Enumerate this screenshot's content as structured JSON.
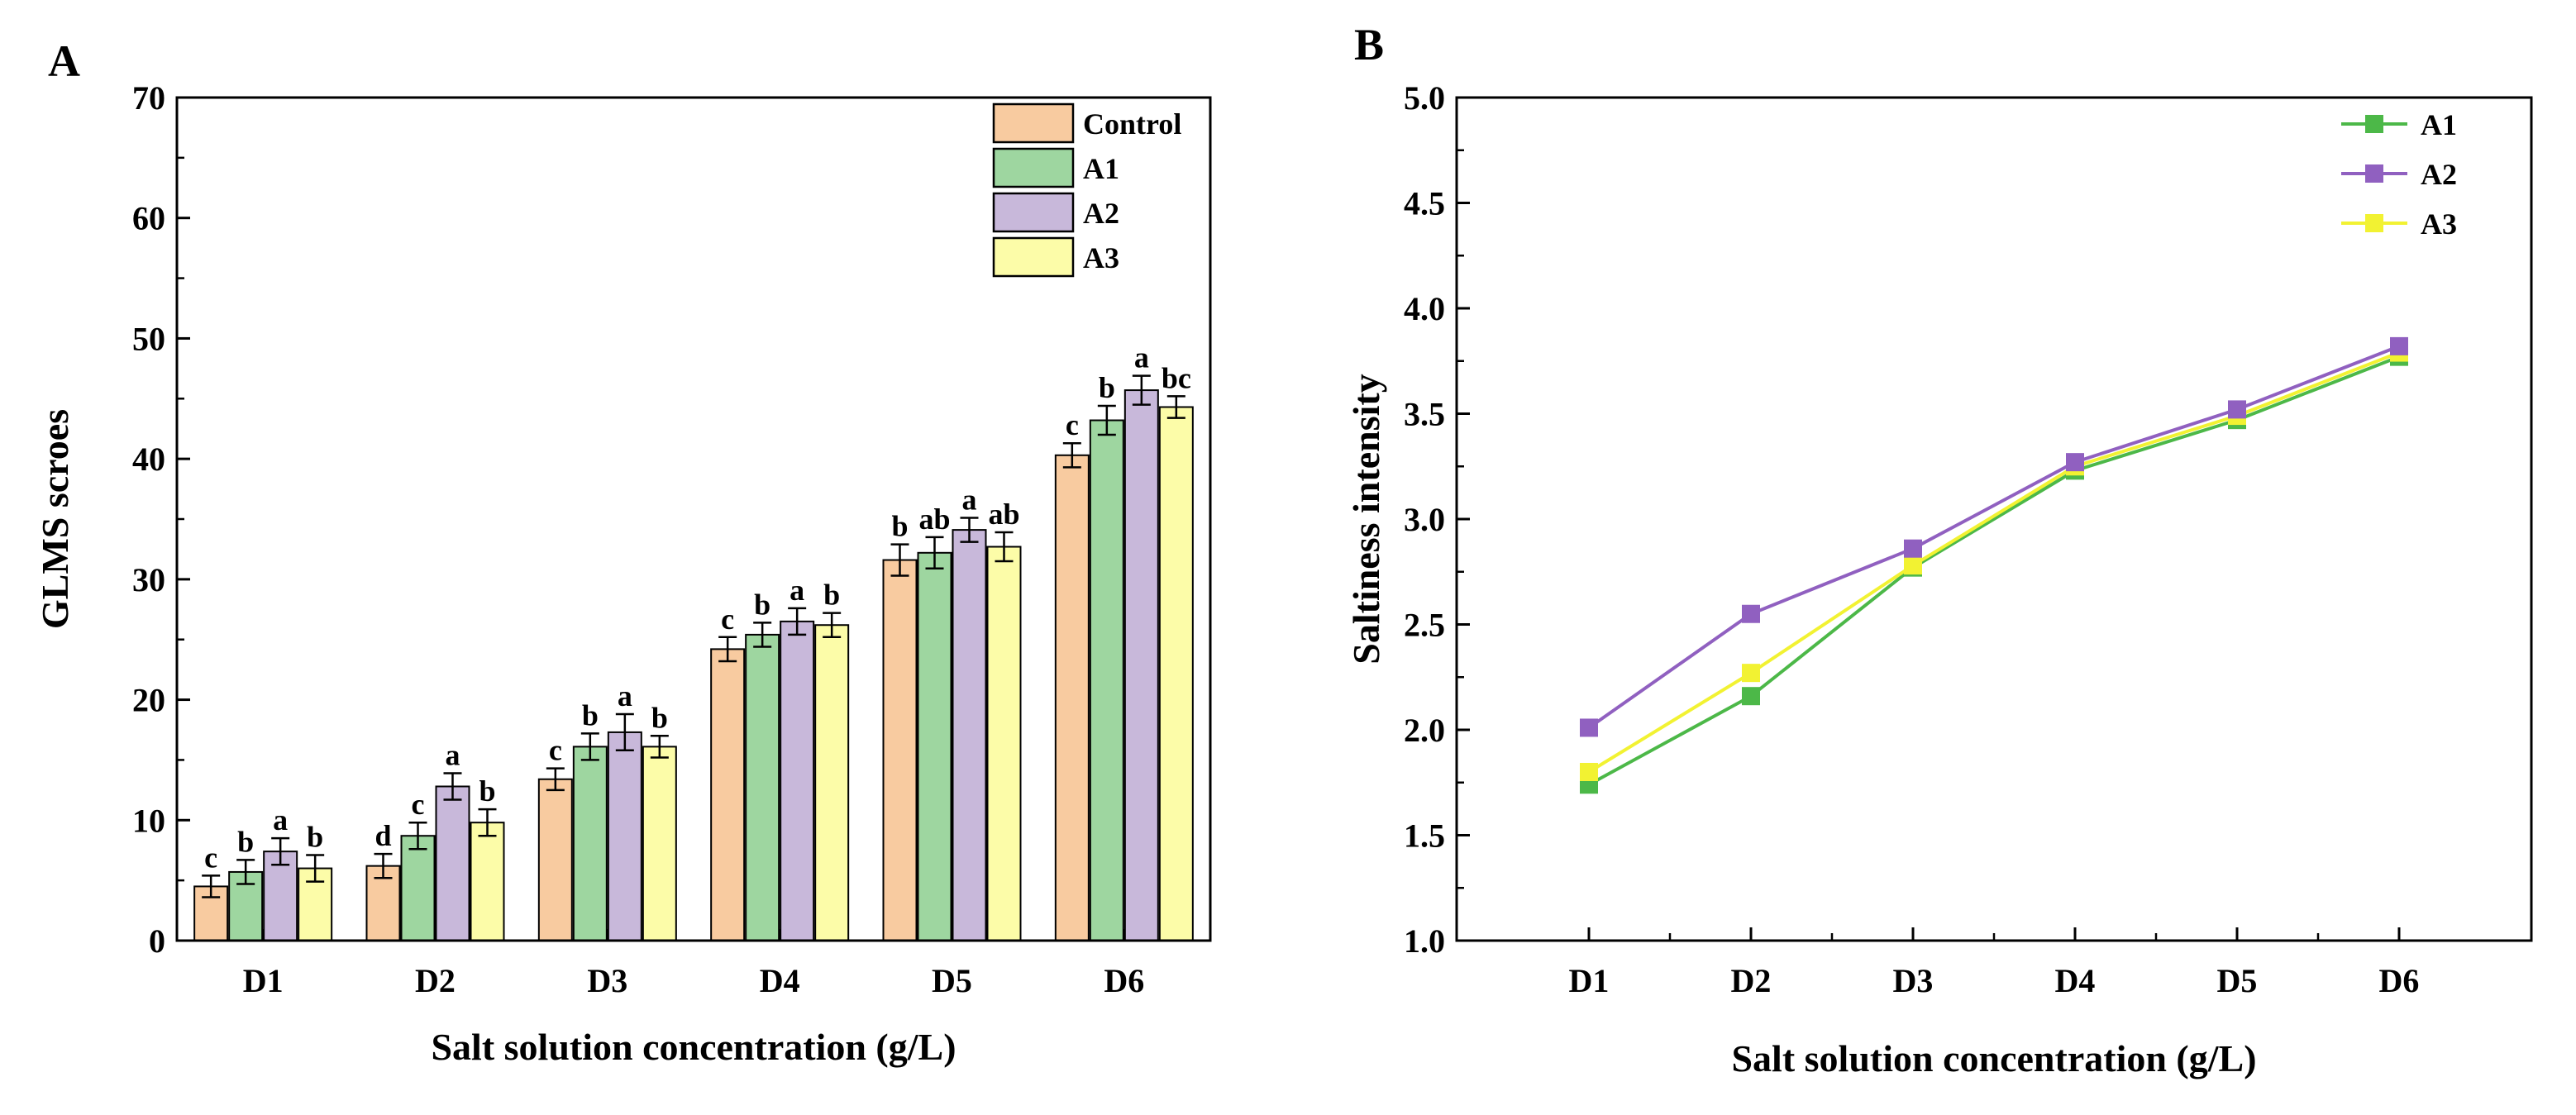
{
  "panels": {
    "a": {
      "letter": "A"
    },
    "b": {
      "letter": "B"
    }
  },
  "colors": {
    "Control": "#F8CBA0",
    "A1_bar": "#9ED6A0",
    "A2_bar": "#C8B8DA",
    "A3_bar": "#FCFCA8",
    "A1_line": "#4CB848",
    "A2_line": "#9060C0",
    "A3_line": "#F2F232"
  },
  "chart_data": [
    {
      "type": "bar",
      "title": "",
      "xlabel": "Salt solution concentration (g/L)",
      "ylabel": "GLMS scroes",
      "ylim": [
        0,
        70
      ],
      "yticks": [
        0,
        10,
        20,
        30,
        40,
        50,
        60,
        70
      ],
      "categories": [
        "D1",
        "D2",
        "D3",
        "D4",
        "D5",
        "D6"
      ],
      "legend_position": "top-right",
      "series": [
        {
          "name": "Control",
          "values": [
            4.5,
            6.2,
            13.4,
            24.2,
            31.6,
            40.3
          ],
          "errors": [
            0.9,
            1.0,
            0.9,
            1.0,
            1.3,
            1.0
          ],
          "letters": [
            "c",
            "d",
            "c",
            "c",
            "b",
            "c"
          ]
        },
        {
          "name": "A1",
          "values": [
            5.7,
            8.7,
            16.1,
            25.4,
            32.2,
            43.2
          ],
          "errors": [
            1.0,
            1.1,
            1.1,
            1.0,
            1.3,
            1.2
          ],
          "letters": [
            "b",
            "c",
            "b",
            "b",
            "ab",
            "b"
          ]
        },
        {
          "name": "A2",
          "values": [
            7.4,
            12.8,
            17.3,
            26.5,
            34.1,
            45.7
          ],
          "errors": [
            1.1,
            1.1,
            1.5,
            1.1,
            1.0,
            1.2
          ],
          "letters": [
            "a",
            "a",
            "a",
            "a",
            "a",
            "a"
          ]
        },
        {
          "name": "A3",
          "values": [
            6.0,
            9.8,
            16.1,
            26.2,
            32.7,
            44.3
          ],
          "errors": [
            1.1,
            1.1,
            0.9,
            1.0,
            1.2,
            0.9
          ],
          "letters": [
            "b",
            "b",
            "b",
            "b",
            "ab",
            "bc"
          ]
        }
      ]
    },
    {
      "type": "line",
      "title": "",
      "xlabel": "Salt solution concentration (g/L)",
      "ylabel": "Saltiness intensity",
      "ylim": [
        1.0,
        5.0
      ],
      "yticks": [
        "1.0",
        "1.5",
        "2.0",
        "2.5",
        "3.0",
        "3.5",
        "4.0",
        "4.5",
        "5.0"
      ],
      "categories": [
        "D1",
        "D2",
        "D3",
        "D4",
        "D5",
        "D6"
      ],
      "legend_position": "top-right",
      "series": [
        {
          "name": "A1",
          "values": [
            1.74,
            2.16,
            2.77,
            3.23,
            3.47,
            3.77
          ]
        },
        {
          "name": "A2",
          "values": [
            2.01,
            2.55,
            2.86,
            3.27,
            3.52,
            3.82
          ]
        },
        {
          "name": "A3",
          "values": [
            1.8,
            2.27,
            2.78,
            3.25,
            3.49,
            3.79
          ]
        }
      ]
    }
  ]
}
